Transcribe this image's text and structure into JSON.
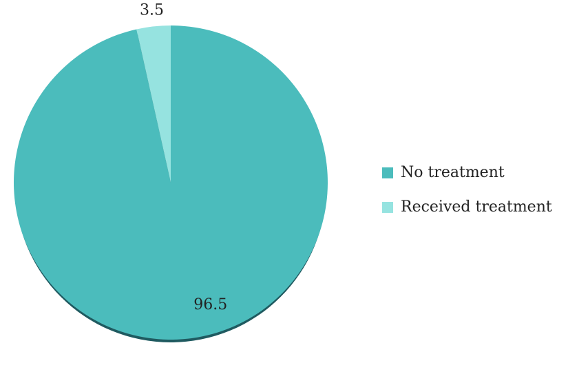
{
  "chart_data": {
    "type": "pie",
    "categories": [
      "No treatment",
      "Received treatment"
    ],
    "values": [
      96.5,
      3.5
    ],
    "colors": [
      "#4bbcbc",
      "#96e3e0"
    ],
    "legend": "right"
  }
}
